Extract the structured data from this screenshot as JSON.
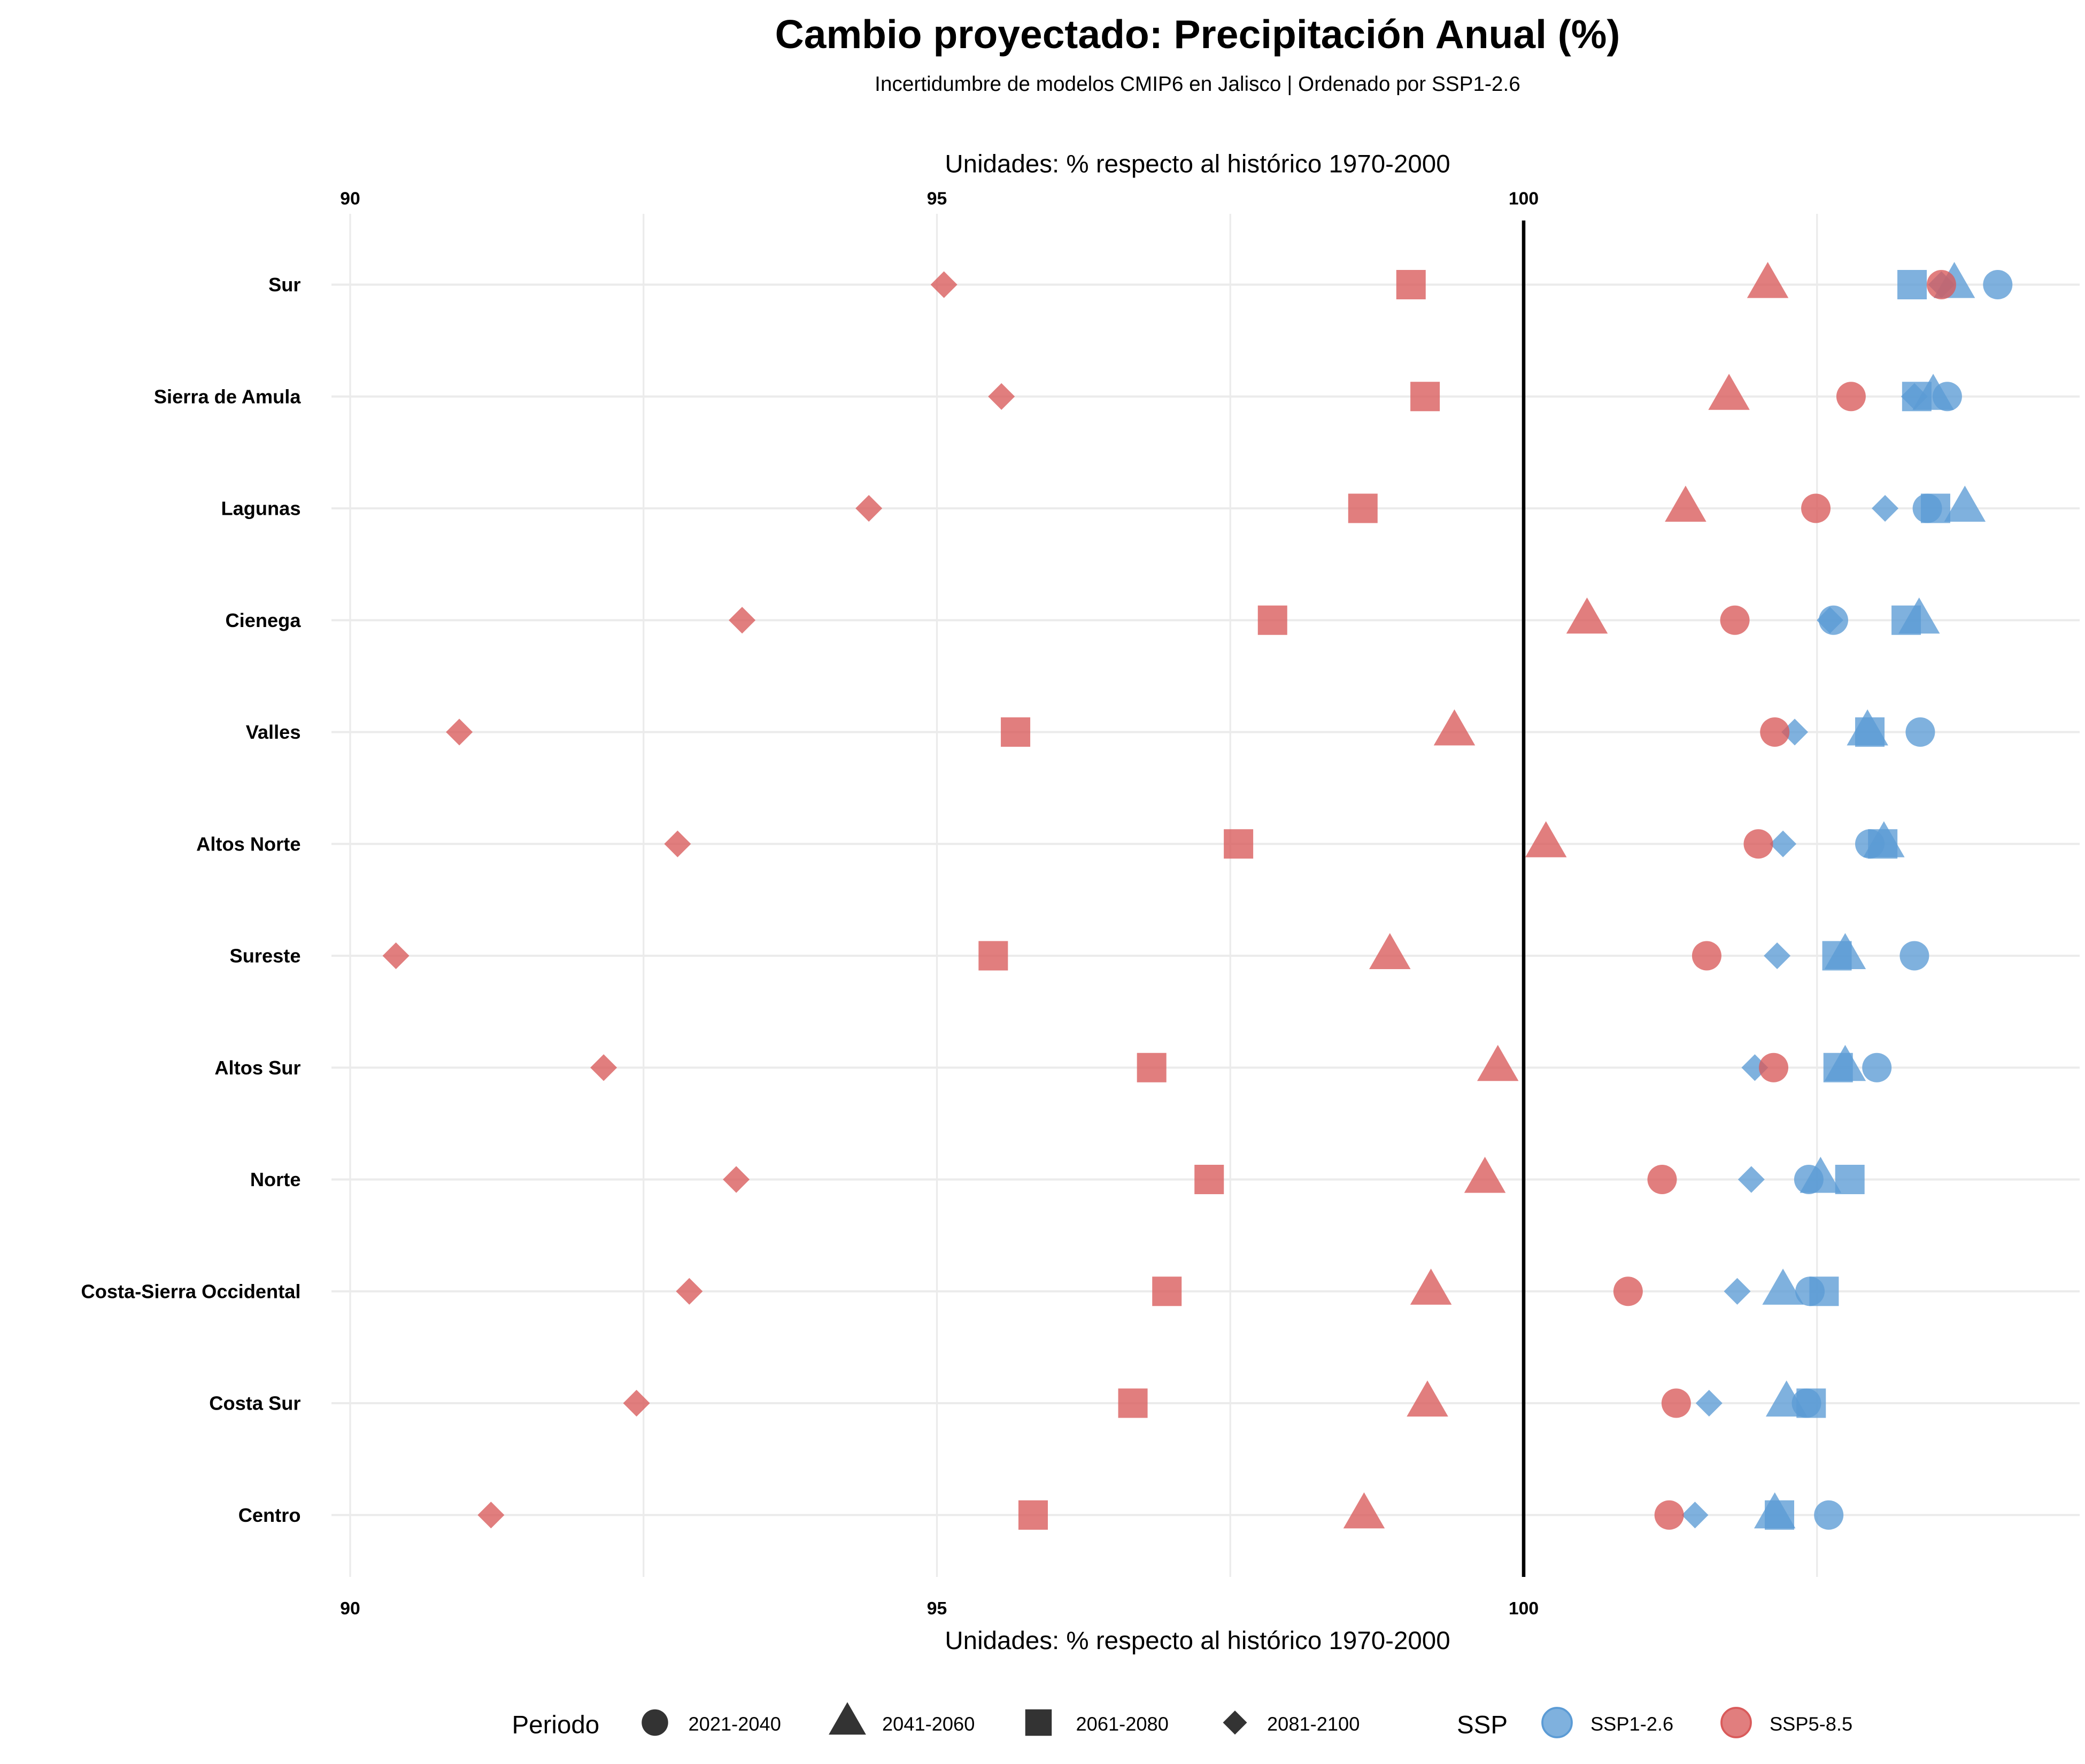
{
  "chart_data": {
    "type": "scatter",
    "title": "Cambio proyectado: Precipitación Anual (%)",
    "subtitle": "Incertidumbre de modelos CMIP6 en Jalisco | Ordenado por SSP1-2.6",
    "xlabel": "Unidades: % respecto al histórico 1970-2000",
    "xlim": [
      90,
      104.7
    ],
    "x_ticks": [
      "90",
      "95",
      "100"
    ],
    "reference_line": 100,
    "grid": true,
    "categories": [
      "Sur",
      "Sierra de Amula",
      "Lagunas",
      "Cienega",
      "Valles",
      "Altos Norte",
      "Sureste",
      "Altos Sur",
      "Norte",
      "Costa-Sierra Occidental",
      "Costa Sur",
      "Centro"
    ],
    "legend": {
      "position": "bottom",
      "period_title": "Periodo",
      "periods": [
        {
          "label": "2021-2040",
          "shape": "circle"
        },
        {
          "label": "2041-2060",
          "shape": "triangle"
        },
        {
          "label": "2061-2080",
          "shape": "square"
        },
        {
          "label": "2081-2100",
          "shape": "diamond"
        }
      ],
      "ssp_title": "SSP",
      "ssps": [
        {
          "label": "SSP1-2.6",
          "color": "#5b9bd5"
        },
        {
          "label": "SSP5-8.5",
          "color": "#d95a5a"
        }
      ]
    },
    "series": [
      {
        "name": "SSP1-2.6",
        "color": "#5b9bd5",
        "values": {
          "2021-2040": [
            104.04,
            103.61,
            103.44,
            102.64,
            103.38,
            102.95,
            103.33,
            103.01,
            102.43,
            102.44,
            102.41,
            102.6
          ],
          "2041-2060": [
            103.67,
            103.49,
            103.76,
            103.37,
            102.93,
            103.07,
            102.74,
            102.74,
            102.53,
            102.21,
            102.24,
            102.14
          ],
          "2061-2080": [
            103.31,
            103.35,
            103.51,
            103.26,
            102.95,
            103.06,
            102.67,
            102.68,
            102.78,
            102.56,
            102.45,
            102.18
          ],
          "2081-2100": [
            103.56,
            103.33,
            103.08,
            102.61,
            102.31,
            102.21,
            102.16,
            101.97,
            101.94,
            101.82,
            101.58,
            101.46
          ]
        }
      },
      {
        "name": "SSP5-8.5",
        "color": "#d95a5a",
        "values": {
          "2021-2040": [
            103.56,
            102.79,
            102.49,
            101.8,
            102.14,
            102.0,
            101.56,
            102.13,
            101.18,
            100.89,
            101.3,
            101.24
          ],
          "2041-2060": [
            102.08,
            101.75,
            101.38,
            100.54,
            99.41,
            100.19,
            98.86,
            99.78,
            99.67,
            99.21,
            99.18,
            98.64
          ],
          "2061-2080": [
            99.04,
            99.16,
            98.63,
            97.86,
            95.67,
            97.57,
            95.48,
            96.83,
            97.32,
            96.96,
            96.67,
            95.82
          ],
          "2081-2100": [
            95.06,
            95.55,
            94.42,
            93.34,
            90.93,
            92.79,
            90.39,
            92.16,
            93.29,
            92.89,
            92.44,
            91.2
          ]
        }
      }
    ]
  }
}
